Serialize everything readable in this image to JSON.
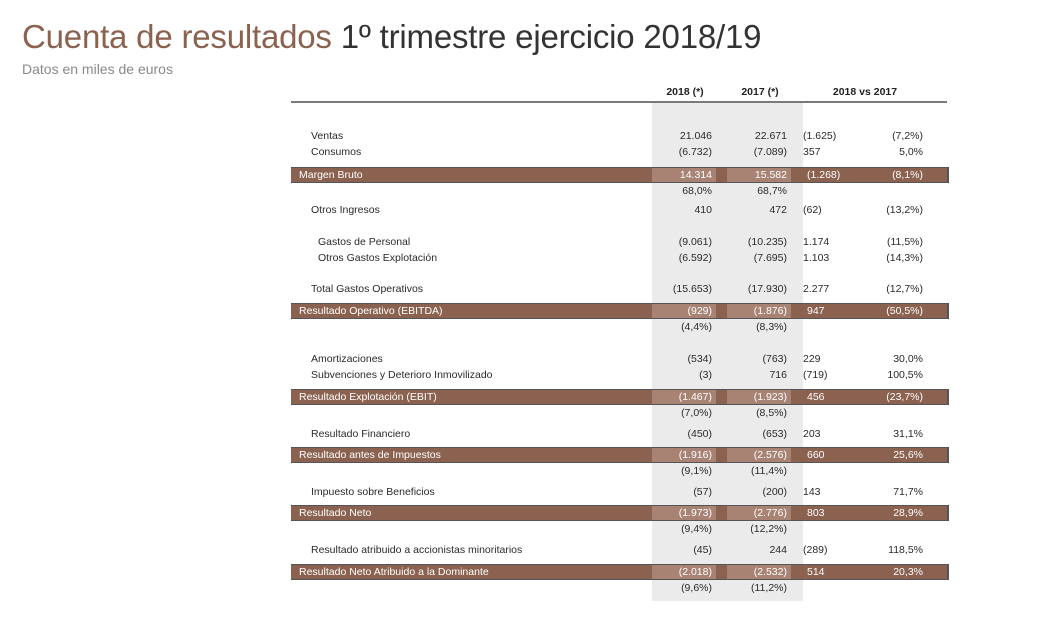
{
  "title": {
    "accent": "Cuenta de resultados",
    "rest": "1º trimestre ejercicio 2018/19"
  },
  "subtitle": "Datos en miles de euros",
  "headers": {
    "col1": "2018 (*)",
    "col2": "2017 (*)",
    "col3": "2018 vs 2017"
  },
  "rows": [
    {
      "label": "Ventas",
      "v2018": "21.046",
      "v2017": "22.671",
      "diff": "(1.625)",
      "pct": "(7,2%)"
    },
    {
      "label": "Consumos",
      "v2018": "(6.732)",
      "v2017": "(7.089)",
      "diff": "357",
      "pct": "5,0%"
    },
    {
      "label": "Margen Bruto",
      "v2018": "14.314",
      "v2017": "15.582",
      "diff": "(1.268)",
      "pct": "(8,1%)"
    },
    {
      "label": "",
      "v2018": "68,0%",
      "v2017": "68,7%",
      "diff": "",
      "pct": ""
    },
    {
      "label": "Otros Ingresos",
      "v2018": "410",
      "v2017": "472",
      "diff": "(62)",
      "pct": "(13,2%)"
    },
    {
      "label": "Gastos de Personal",
      "v2018": "(9.061)",
      "v2017": "(10.235)",
      "diff": "1.174",
      "pct": "(11,5%)"
    },
    {
      "label": "Otros Gastos Explotación",
      "v2018": "(6.592)",
      "v2017": "(7.695)",
      "diff": "1.103",
      "pct": "(14,3%)"
    },
    {
      "label": "Total Gastos Operativos",
      "v2018": "(15.653)",
      "v2017": "(17.930)",
      "diff": "2.277",
      "pct": "(12,7%)"
    },
    {
      "label": "Resultado Operativo (EBITDA)",
      "v2018": "(929)",
      "v2017": "(1.876)",
      "diff": "947",
      "pct": "(50,5%)"
    },
    {
      "label": "",
      "v2018": "(4,4%)",
      "v2017": "(8,3%)",
      "diff": "",
      "pct": ""
    },
    {
      "label": "Amortizaciones",
      "v2018": "(534)",
      "v2017": "(763)",
      "diff": "229",
      "pct": "30,0%"
    },
    {
      "label": "Subvenciones y Deterioro Inmovilizado",
      "v2018": "(3)",
      "v2017": "716",
      "diff": "(719)",
      "pct": "100,5%"
    },
    {
      "label": "Resultado Explotación (EBIT)",
      "v2018": "(1.467)",
      "v2017": "(1.923)",
      "diff": "456",
      "pct": "(23,7%)"
    },
    {
      "label": "",
      "v2018": "(7,0%)",
      "v2017": "(8,5%)",
      "diff": "",
      "pct": ""
    },
    {
      "label": "Resultado Financiero",
      "v2018": "(450)",
      "v2017": "(653)",
      "diff": "203",
      "pct": "31,1%"
    },
    {
      "label": "Resultado antes de Impuestos",
      "v2018": "(1.916)",
      "v2017": "(2.576)",
      "diff": "660",
      "pct": "25,6%"
    },
    {
      "label": "",
      "v2018": "(9,1%)",
      "v2017": "(11,4%)",
      "diff": "",
      "pct": ""
    },
    {
      "label": "Impuesto sobre Beneficios",
      "v2018": "(57)",
      "v2017": "(200)",
      "diff": "143",
      "pct": "71,7%"
    },
    {
      "label": "Resultado Neto",
      "v2018": "(1.973)",
      "v2017": "(2.776)",
      "diff": "803",
      "pct": "28,9%"
    },
    {
      "label": "",
      "v2018": "(9,4%)",
      "v2017": "(12,2%)",
      "diff": "",
      "pct": ""
    },
    {
      "label": "Resultado atribuido a accionistas minoritarios",
      "v2018": "(45)",
      "v2017": "244",
      "diff": "(289)",
      "pct": "118,5%"
    },
    {
      "label": "Resultado Neto Atribuido a la Dominante",
      "v2018": "(2.018)",
      "v2017": "(2.532)",
      "diff": "514",
      "pct": "20,3%"
    },
    {
      "label": "",
      "v2018": "(9,6%)",
      "v2017": "(11,2%)",
      "diff": "",
      "pct": ""
    }
  ]
}
